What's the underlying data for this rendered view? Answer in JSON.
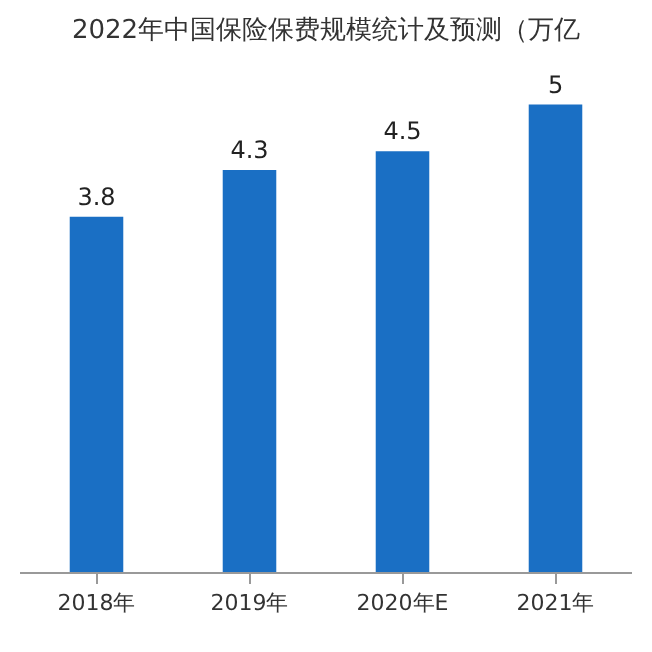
{
  "chart_data": {
    "type": "bar",
    "title": "2022年中国保险保费规模统计及预测（万亿",
    "categories": [
      "2018年",
      "2019年",
      "2020年E",
      "2021年"
    ],
    "values": [
      3.8,
      4.3,
      4.5,
      5
    ],
    "color": "#1a6fc4",
    "data_labels": true
  }
}
